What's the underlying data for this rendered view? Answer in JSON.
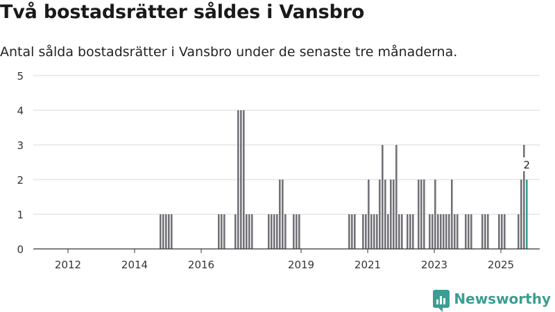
{
  "header": {
    "title": "Två bostadsrätter såldes i Vansbro",
    "subtitle": "Antal sålda bostadsrätter i Vansbro under de senaste tre månaderna."
  },
  "brand": {
    "name": "Newsworthy",
    "icon": "newsworthy-logo-icon",
    "color": "#3a9e92"
  },
  "colors": {
    "bar": "#717177",
    "highlight": "#3a9e92",
    "grid": "#d9d9d9",
    "axis": "#333333"
  },
  "chart_data": {
    "type": "bar",
    "x_unit": "month",
    "ylim": [
      0,
      5
    ],
    "yticks": [
      "0",
      "1",
      "2",
      "3",
      "4",
      "5"
    ],
    "xticks": [
      {
        "label": "2012",
        "date": "2012-01"
      },
      {
        "label": "2014",
        "date": "2014-01"
      },
      {
        "label": "2016",
        "date": "2016-01"
      },
      {
        "label": "2019",
        "date": "2019-01"
      },
      {
        "label": "2021",
        "date": "2021-01"
      },
      {
        "label": "2023",
        "date": "2023-01"
      },
      {
        "label": "2025",
        "date": "2025-01"
      }
    ],
    "grid": true,
    "annotation": {
      "date": "2025-10",
      "text": "2"
    },
    "highlight_date": "2025-10",
    "bars": [
      {
        "date": "2014-10",
        "value": 1
      },
      {
        "date": "2014-11",
        "value": 1
      },
      {
        "date": "2014-12",
        "value": 1
      },
      {
        "date": "2015-01",
        "value": 1
      },
      {
        "date": "2015-02",
        "value": 1
      },
      {
        "date": "2016-07",
        "value": 1
      },
      {
        "date": "2016-08",
        "value": 1
      },
      {
        "date": "2016-09",
        "value": 1
      },
      {
        "date": "2017-01",
        "value": 1
      },
      {
        "date": "2017-02",
        "value": 4
      },
      {
        "date": "2017-03",
        "value": 4
      },
      {
        "date": "2017-04",
        "value": 4
      },
      {
        "date": "2017-05",
        "value": 1
      },
      {
        "date": "2017-06",
        "value": 1
      },
      {
        "date": "2017-07",
        "value": 1
      },
      {
        "date": "2018-01",
        "value": 1
      },
      {
        "date": "2018-02",
        "value": 1
      },
      {
        "date": "2018-03",
        "value": 1
      },
      {
        "date": "2018-04",
        "value": 1
      },
      {
        "date": "2018-05",
        "value": 2
      },
      {
        "date": "2018-06",
        "value": 2
      },
      {
        "date": "2018-07",
        "value": 1
      },
      {
        "date": "2018-10",
        "value": 1
      },
      {
        "date": "2018-11",
        "value": 1
      },
      {
        "date": "2018-12",
        "value": 1
      },
      {
        "date": "2020-06",
        "value": 1
      },
      {
        "date": "2020-07",
        "value": 1
      },
      {
        "date": "2020-08",
        "value": 1
      },
      {
        "date": "2020-11",
        "value": 1
      },
      {
        "date": "2020-12",
        "value": 1
      },
      {
        "date": "2021-01",
        "value": 2
      },
      {
        "date": "2021-02",
        "value": 1
      },
      {
        "date": "2021-03",
        "value": 1
      },
      {
        "date": "2021-04",
        "value": 1
      },
      {
        "date": "2021-05",
        "value": 2
      },
      {
        "date": "2021-06",
        "value": 3
      },
      {
        "date": "2021-07",
        "value": 2
      },
      {
        "date": "2021-08",
        "value": 1
      },
      {
        "date": "2021-09",
        "value": 2
      },
      {
        "date": "2021-10",
        "value": 2
      },
      {
        "date": "2021-11",
        "value": 3
      },
      {
        "date": "2021-12",
        "value": 1
      },
      {
        "date": "2022-01",
        "value": 1
      },
      {
        "date": "2022-03",
        "value": 1
      },
      {
        "date": "2022-04",
        "value": 1
      },
      {
        "date": "2022-05",
        "value": 1
      },
      {
        "date": "2022-07",
        "value": 2
      },
      {
        "date": "2022-08",
        "value": 2
      },
      {
        "date": "2022-09",
        "value": 2
      },
      {
        "date": "2022-11",
        "value": 1
      },
      {
        "date": "2022-12",
        "value": 1
      },
      {
        "date": "2023-01",
        "value": 2
      },
      {
        "date": "2023-02",
        "value": 1
      },
      {
        "date": "2023-03",
        "value": 1
      },
      {
        "date": "2023-04",
        "value": 1
      },
      {
        "date": "2023-05",
        "value": 1
      },
      {
        "date": "2023-06",
        "value": 1
      },
      {
        "date": "2023-07",
        "value": 2
      },
      {
        "date": "2023-08",
        "value": 1
      },
      {
        "date": "2023-09",
        "value": 1
      },
      {
        "date": "2023-12",
        "value": 1
      },
      {
        "date": "2024-01",
        "value": 1
      },
      {
        "date": "2024-02",
        "value": 1
      },
      {
        "date": "2024-06",
        "value": 1
      },
      {
        "date": "2024-07",
        "value": 1
      },
      {
        "date": "2024-08",
        "value": 1
      },
      {
        "date": "2024-12",
        "value": 1
      },
      {
        "date": "2025-01",
        "value": 1
      },
      {
        "date": "2025-02",
        "value": 1
      },
      {
        "date": "2025-07",
        "value": 1
      },
      {
        "date": "2025-08",
        "value": 2
      },
      {
        "date": "2025-09",
        "value": 3
      },
      {
        "date": "2025-10",
        "value": 2
      }
    ]
  }
}
